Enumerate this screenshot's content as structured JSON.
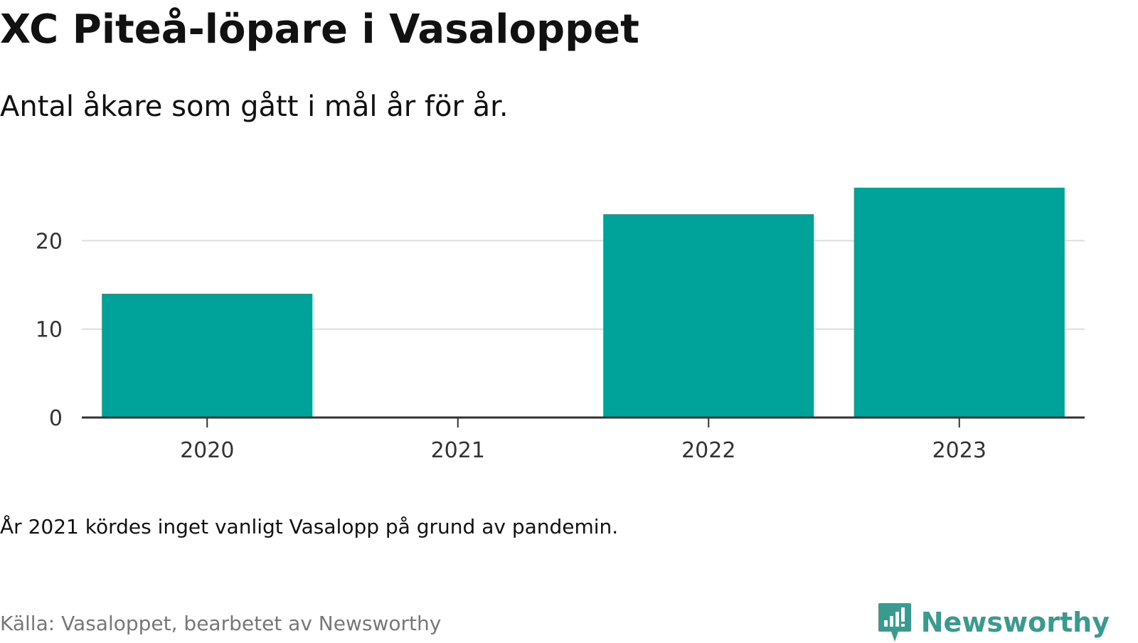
{
  "chart_data": {
    "type": "bar",
    "title": "XC Piteå-löpare i Vasaloppet",
    "subtitle": "Antal åkare som gått i mål år för år.",
    "categories": [
      "2020",
      "2021",
      "2022",
      "2023"
    ],
    "values": [
      14,
      0,
      23,
      26
    ],
    "xlabel": "",
    "ylabel": "",
    "ylim": [
      0,
      28
    ],
    "yticks": [
      0,
      10,
      20
    ],
    "grid": true,
    "legend": "none",
    "bar_color": "#00a39a"
  },
  "footer": {
    "note": "År 2021 kördes inget vanligt Vasalopp på grund av pandemin.",
    "source": "Källa: Vasaloppet, bearbetet av Newsworthy",
    "brand": "Newsworthy",
    "brand_icon": "newsworthy-logo-icon",
    "brand_color": "#3a9a90"
  },
  "colors": {
    "grid": "#dddddd",
    "axis": "#333333",
    "text": "#111111",
    "muted": "#777777"
  }
}
